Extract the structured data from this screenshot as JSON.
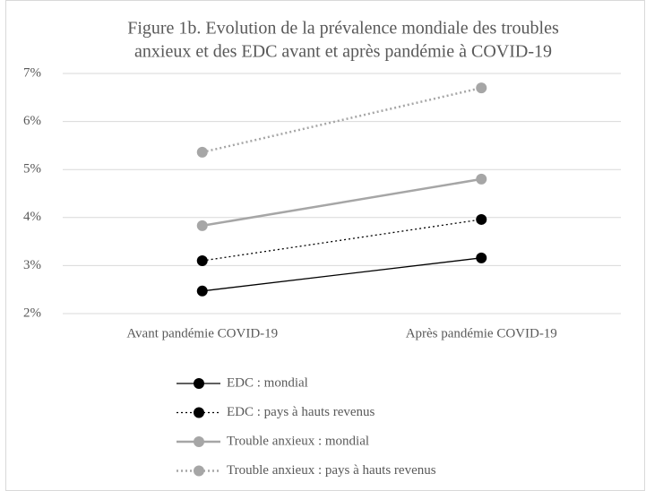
{
  "chart_data": {
    "type": "line",
    "title": [
      "Figure 1b. Evolution de la prévalence mondiale des troubles",
      "anxieux et des EDC avant et après pandémie à COVID-19"
    ],
    "categories": [
      "Avant pandémie COVID-19",
      "Après pandémie COVID-19"
    ],
    "series": [
      {
        "name": "EDC : mondial",
        "color": "#000000",
        "dash": "solid",
        "values": [
          2.47,
          3.16
        ]
      },
      {
        "name": "EDC : pays à hauts revenus",
        "color": "#000000",
        "dash": "dotted",
        "values": [
          3.1,
          3.96
        ]
      },
      {
        "name": "Trouble anxieux : mondial",
        "color": "#a6a6a6",
        "dash": "solid",
        "values": [
          3.83,
          4.8
        ]
      },
      {
        "name": "Trouble anxieux : pays à hauts revenus",
        "color": "#a6a6a6",
        "dash": "dotted",
        "values": [
          5.36,
          6.7
        ]
      }
    ],
    "ylim": [
      2,
      7
    ],
    "yticks": [
      {
        "value": 2,
        "label": "2%"
      },
      {
        "value": 3,
        "label": "3%"
      },
      {
        "value": 4,
        "label": "4%"
      },
      {
        "value": 5,
        "label": "5%"
      },
      {
        "value": 6,
        "label": "6%"
      },
      {
        "value": 7,
        "label": "7%"
      }
    ],
    "grid": true,
    "legend": "bottom"
  }
}
